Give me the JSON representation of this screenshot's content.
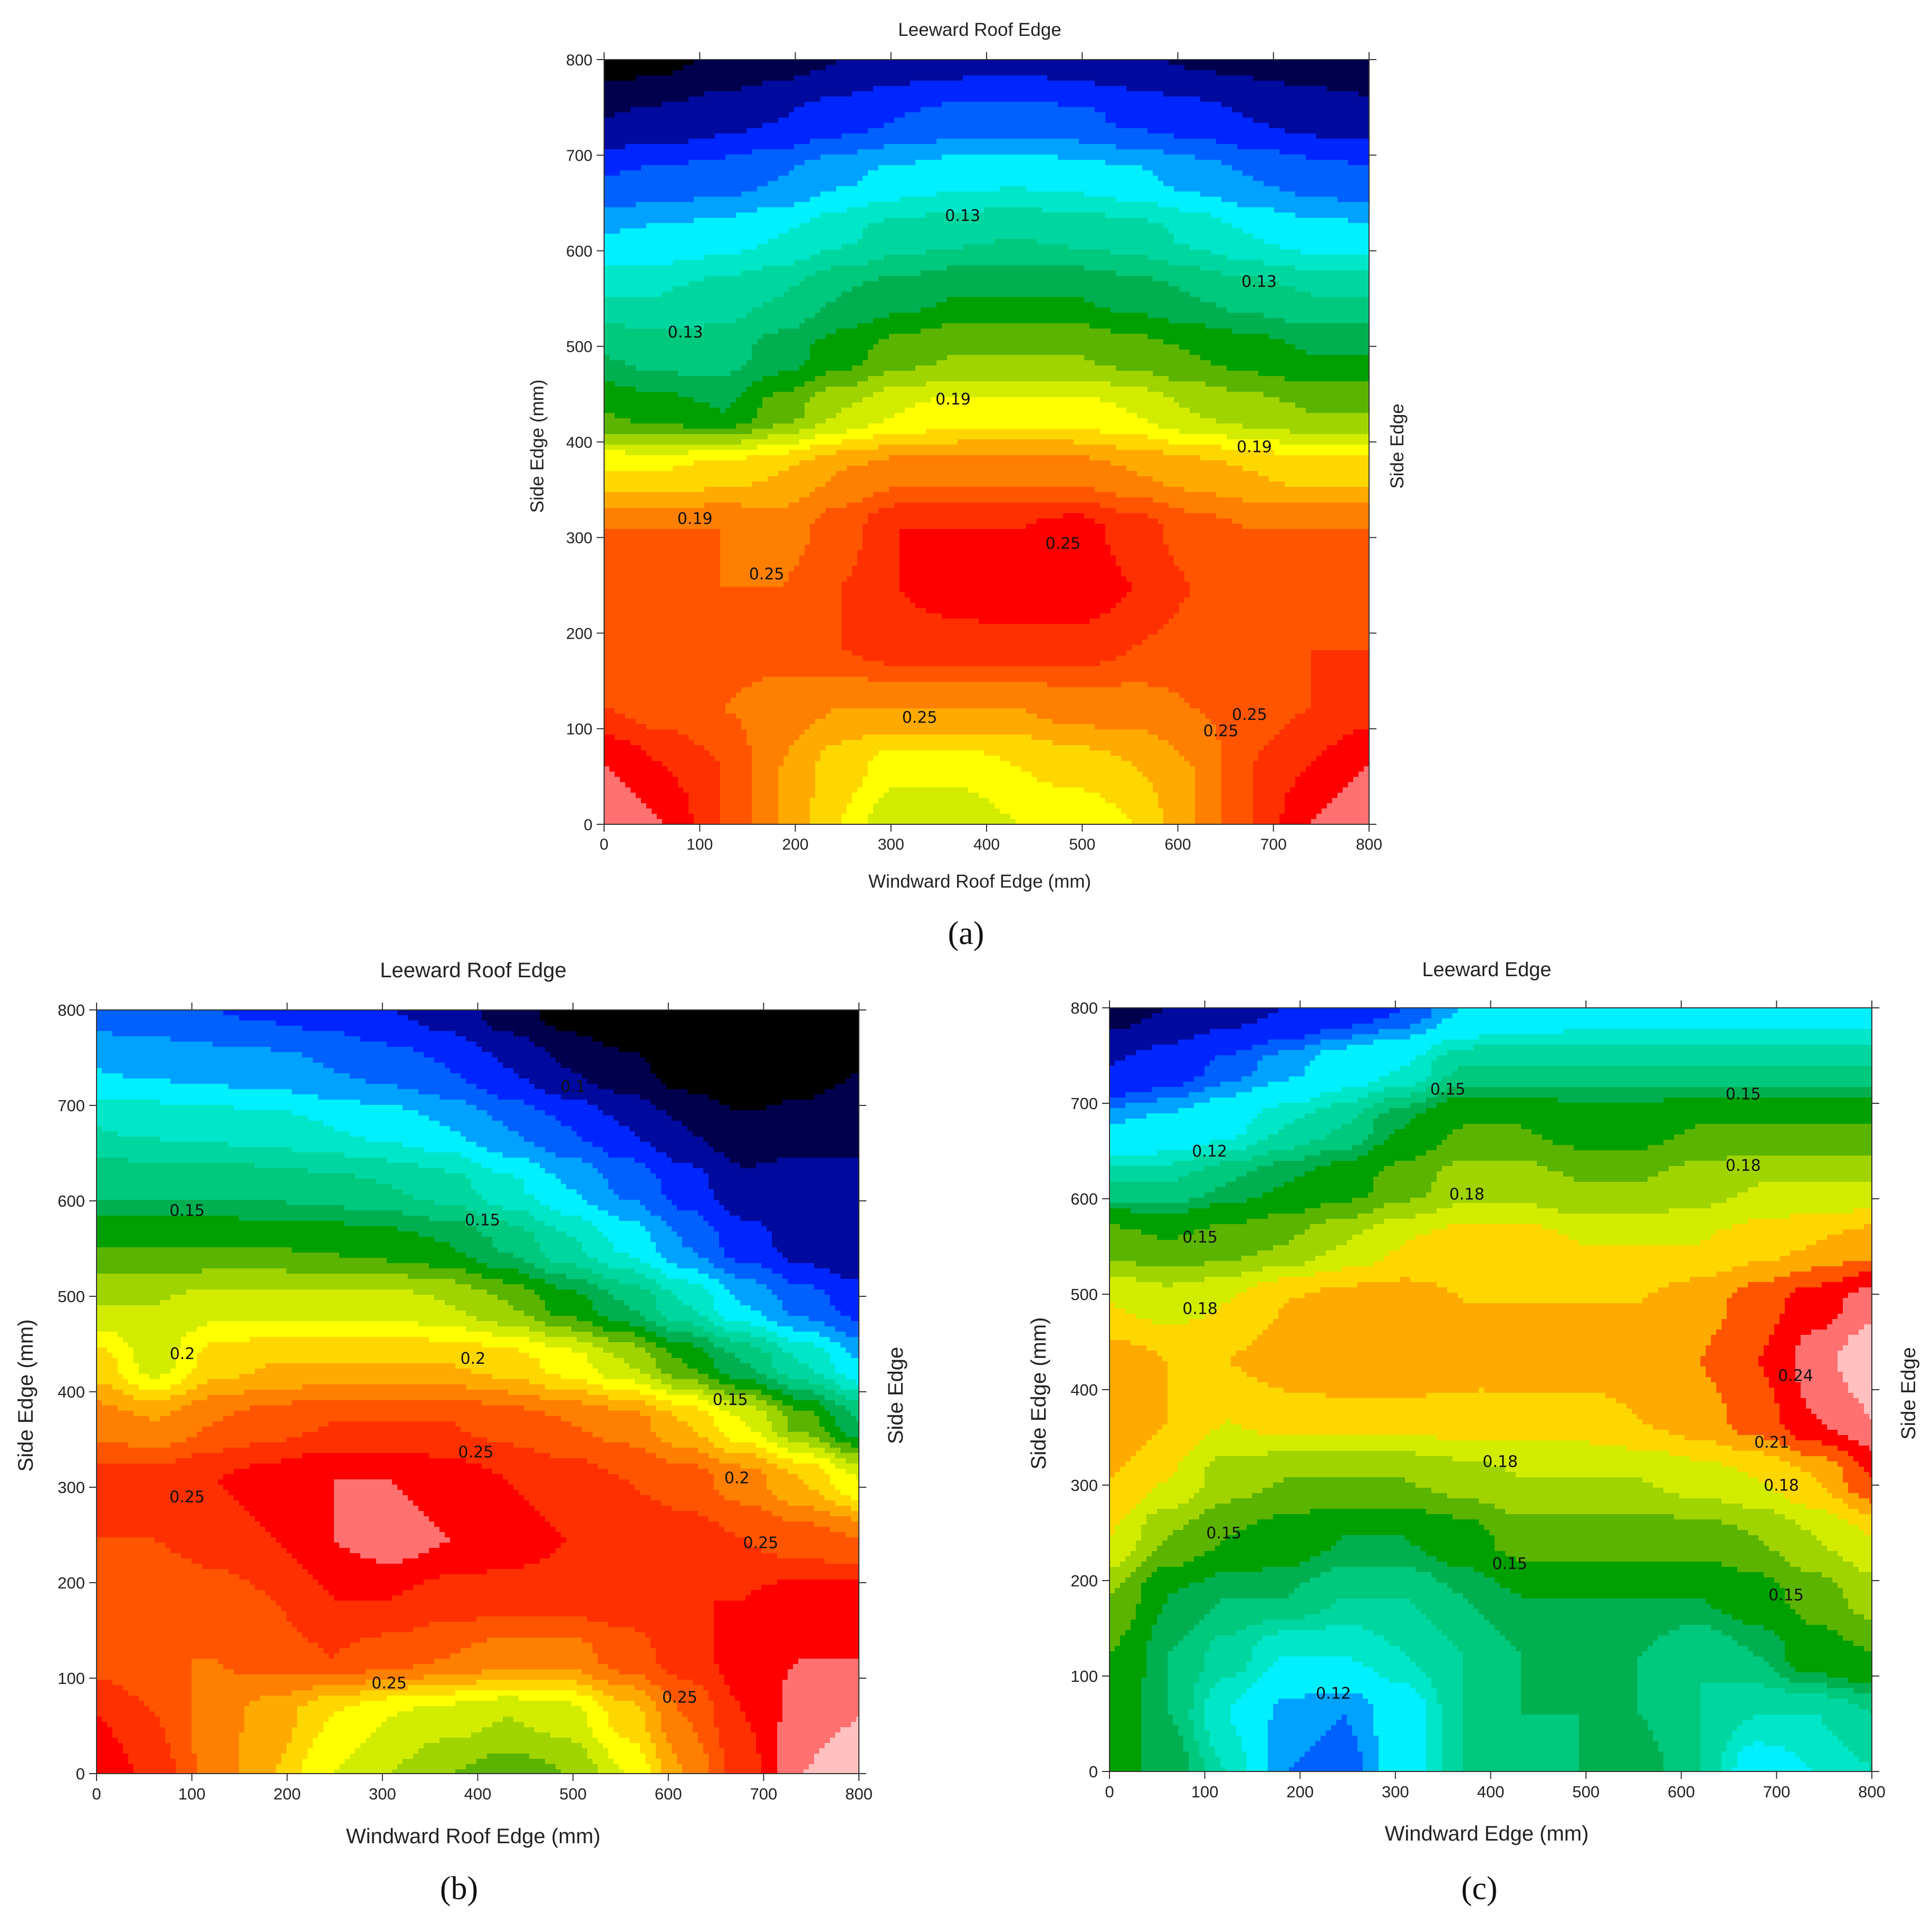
{
  "chart_data": [
    {
      "type": "heatmap",
      "panel_label": "(a)",
      "top_label": "Leeward Roof Edge",
      "right_label": "Side Edge",
      "xlabel": "Windward Roof Edge (mm)",
      "ylabel": "Side Edge (mm)",
      "xlim": [
        0,
        800
      ],
      "ylim": [
        0,
        800
      ],
      "xticks": [
        "0",
        "100",
        "200",
        "300",
        "400",
        "500",
        "600",
        "700",
        "800"
      ],
      "yticks": [
        "0",
        "100",
        "200",
        "300",
        "400",
        "500",
        "600",
        "700",
        "800"
      ],
      "levels": [
        0.08,
        0.09,
        0.1,
        0.11,
        0.12,
        0.13,
        0.14,
        0.15,
        0.16,
        0.17,
        0.18,
        0.19,
        0.2,
        0.21,
        0.22,
        0.23,
        0.24,
        0.25,
        0.26,
        0.27,
        0.28,
        0.29,
        0.3,
        0.31
      ],
      "colors": [
        "#000000",
        "#00004d",
        "#000a9e",
        "#0026ff",
        "#0061ff",
        "#00a2ff",
        "#00f0ff",
        "#00e6c8",
        "#00d7a0",
        "#00c87d",
        "#00b050",
        "#00a000",
        "#5ab400",
        "#9fd400",
        "#d2ec00",
        "#ffff00",
        "#ffd700",
        "#ffaa00",
        "#ff7f00",
        "#ff5500",
        "#ff3000",
        "#ff0000",
        "#ff7070",
        "#ffc0c0",
        "#ffffff"
      ],
      "grid": [
        [
          0.3,
          0.29,
          0.27,
          0.25,
          0.23,
          0.21,
          0.21,
          0.22,
          0.22,
          0.23,
          0.25,
          0.27,
          0.29,
          0.3
        ],
        [
          0.29,
          0.28,
          0.27,
          0.25,
          0.235,
          0.225,
          0.225,
          0.23,
          0.235,
          0.24,
          0.25,
          0.27,
          0.28,
          0.29
        ],
        [
          0.27,
          0.265,
          0.26,
          0.255,
          0.25,
          0.25,
          0.25,
          0.25,
          0.255,
          0.255,
          0.26,
          0.265,
          0.27,
          0.275
        ],
        [
          0.26,
          0.265,
          0.265,
          0.265,
          0.27,
          0.275,
          0.275,
          0.275,
          0.275,
          0.27,
          0.265,
          0.265,
          0.27,
          0.27
        ],
        [
          0.265,
          0.265,
          0.26,
          0.26,
          0.27,
          0.28,
          0.285,
          0.29,
          0.29,
          0.28,
          0.27,
          0.265,
          0.265,
          0.265
        ],
        [
          0.26,
          0.26,
          0.26,
          0.255,
          0.265,
          0.28,
          0.28,
          0.28,
          0.285,
          0.275,
          0.265,
          0.26,
          0.26,
          0.26
        ],
        [
          0.23,
          0.23,
          0.235,
          0.24,
          0.25,
          0.255,
          0.255,
          0.255,
          0.255,
          0.25,
          0.245,
          0.24,
          0.235,
          0.235
        ],
        [
          0.19,
          0.185,
          0.18,
          0.195,
          0.21,
          0.22,
          0.225,
          0.225,
          0.225,
          0.22,
          0.21,
          0.205,
          0.2,
          0.2
        ],
        [
          0.17,
          0.165,
          0.165,
          0.175,
          0.185,
          0.195,
          0.2,
          0.2,
          0.2,
          0.195,
          0.19,
          0.185,
          0.18,
          0.18
        ],
        [
          0.15,
          0.15,
          0.155,
          0.16,
          0.17,
          0.175,
          0.18,
          0.18,
          0.18,
          0.175,
          0.17,
          0.165,
          0.16,
          0.16
        ],
        [
          0.13,
          0.132,
          0.135,
          0.14,
          0.148,
          0.155,
          0.158,
          0.16,
          0.158,
          0.155,
          0.148,
          0.14,
          0.135,
          0.133
        ],
        [
          0.11,
          0.112,
          0.115,
          0.12,
          0.128,
          0.133,
          0.137,
          0.138,
          0.136,
          0.132,
          0.126,
          0.12,
          0.115,
          0.112
        ],
        [
          0.09,
          0.092,
          0.096,
          0.1,
          0.105,
          0.11,
          0.113,
          0.114,
          0.112,
          0.108,
          0.104,
          0.1,
          0.096,
          0.094
        ],
        [
          0.075,
          0.078,
          0.082,
          0.086,
          0.09,
          0.094,
          0.096,
          0.097,
          0.095,
          0.092,
          0.089,
          0.087,
          0.085,
          0.083
        ]
      ],
      "annotations": [
        {
          "text": "0.13",
          "x": 375,
          "y": 637
        },
        {
          "text": "0.13",
          "x": 85,
          "y": 515
        },
        {
          "text": "0.13",
          "x": 685,
          "y": 568
        },
        {
          "text": "0.19",
          "x": 365,
          "y": 445
        },
        {
          "text": "0.19",
          "x": 680,
          "y": 395
        },
        {
          "text": "0.19",
          "x": 95,
          "y": 320
        },
        {
          "text": "0.25",
          "x": 170,
          "y": 262
        },
        {
          "text": "0.25",
          "x": 480,
          "y": 294
        },
        {
          "text": "0.25",
          "x": 330,
          "y": 112
        },
        {
          "text": "0.25",
          "x": 675,
          "y": 115
        },
        {
          "text": "0.25",
          "x": 645,
          "y": 98
        }
      ]
    },
    {
      "type": "heatmap",
      "panel_label": "(b)",
      "top_label": "Leeward Roof Edge",
      "right_label": "Side Edge",
      "xlabel": "Windward Roof Edge (mm)",
      "ylabel": "Side Edge (mm)",
      "xlim": [
        0,
        800
      ],
      "ylim": [
        0,
        800
      ],
      "xticks": [
        "0",
        "100",
        "200",
        "300",
        "400",
        "500",
        "600",
        "700",
        "800"
      ],
      "yticks": [
        "0",
        "100",
        "200",
        "300",
        "400",
        "500",
        "600",
        "700",
        "800"
      ],
      "levels": [
        0.06,
        0.07,
        0.08,
        0.09,
        0.1,
        0.11,
        0.12,
        0.13,
        0.14,
        0.15,
        0.16,
        0.17,
        0.18,
        0.19,
        0.2,
        0.21,
        0.22,
        0.23,
        0.24,
        0.25,
        0.26,
        0.27,
        0.28,
        0.29
      ],
      "colors": [
        "#000000",
        "#00004d",
        "#000a9e",
        "#0026ff",
        "#0061ff",
        "#00a2ff",
        "#00f0ff",
        "#00e6c8",
        "#00d7a0",
        "#00c87d",
        "#00b050",
        "#00a000",
        "#5ab400",
        "#9fd400",
        "#d2ec00",
        "#ffff00",
        "#ffd700",
        "#ffaa00",
        "#ff7f00",
        "#ff5500",
        "#ff3000",
        "#ff0000",
        "#ff7070",
        "#ffc0c0",
        "#ffffff"
      ],
      "grid": [
        [
          0.27,
          0.255,
          0.235,
          0.22,
          0.2,
          0.19,
          0.18,
          0.175,
          0.18,
          0.2,
          0.23,
          0.255,
          0.28,
          0.29
        ],
        [
          0.26,
          0.25,
          0.235,
          0.225,
          0.21,
          0.2,
          0.195,
          0.19,
          0.195,
          0.215,
          0.24,
          0.26,
          0.275,
          0.28
        ],
        [
          0.245,
          0.24,
          0.24,
          0.245,
          0.25,
          0.245,
          0.24,
          0.235,
          0.235,
          0.245,
          0.255,
          0.265,
          0.27,
          0.27
        ],
        [
          0.24,
          0.24,
          0.245,
          0.25,
          0.26,
          0.26,
          0.255,
          0.255,
          0.255,
          0.255,
          0.26,
          0.26,
          0.265,
          0.265
        ],
        [
          0.25,
          0.25,
          0.255,
          0.26,
          0.27,
          0.275,
          0.27,
          0.265,
          0.26,
          0.258,
          0.255,
          0.25,
          0.245,
          0.24
        ],
        [
          0.255,
          0.255,
          0.26,
          0.265,
          0.27,
          0.27,
          0.265,
          0.26,
          0.255,
          0.25,
          0.245,
          0.235,
          0.22,
          0.2
        ],
        [
          0.235,
          0.23,
          0.24,
          0.245,
          0.25,
          0.25,
          0.25,
          0.245,
          0.24,
          0.235,
          0.22,
          0.2,
          0.175,
          0.15
        ],
        [
          0.215,
          0.195,
          0.215,
          0.22,
          0.22,
          0.22,
          0.22,
          0.215,
          0.205,
          0.19,
          0.17,
          0.15,
          0.13,
          0.11
        ],
        [
          0.19,
          0.19,
          0.195,
          0.195,
          0.195,
          0.195,
          0.19,
          0.18,
          0.165,
          0.15,
          0.13,
          0.11,
          0.095,
          0.085
        ],
        [
          0.17,
          0.17,
          0.17,
          0.17,
          0.168,
          0.165,
          0.16,
          0.148,
          0.132,
          0.118,
          0.1,
          0.085,
          0.075,
          0.07
        ],
        [
          0.148,
          0.148,
          0.148,
          0.146,
          0.143,
          0.14,
          0.134,
          0.122,
          0.11,
          0.098,
          0.085,
          0.073,
          0.075,
          0.07
        ],
        [
          0.13,
          0.128,
          0.126,
          0.124,
          0.12,
          0.116,
          0.11,
          0.1,
          0.09,
          0.08,
          0.07,
          0.062,
          0.065,
          0.07
        ],
        [
          0.11,
          0.108,
          0.106,
          0.104,
          0.1,
          0.096,
          0.09,
          0.08,
          0.07,
          0.063,
          0.055,
          0.05,
          0.055,
          0.06
        ],
        [
          0.095,
          0.093,
          0.09,
          0.088,
          0.085,
          0.08,
          0.075,
          0.065,
          0.055,
          0.05,
          0.045,
          0.045,
          0.05,
          0.055
        ]
      ],
      "annotations": [
        {
          "text": "0.1",
          "x": 500,
          "y": 720
        },
        {
          "text": "0.15",
          "x": 95,
          "y": 590
        },
        {
          "text": "0.15",
          "x": 405,
          "y": 580
        },
        {
          "text": "0.15",
          "x": 665,
          "y": 392
        },
        {
          "text": "0.2",
          "x": 90,
          "y": 440
        },
        {
          "text": "0.2",
          "x": 395,
          "y": 435
        },
        {
          "text": "0.2",
          "x": 672,
          "y": 310
        },
        {
          "text": "0.25",
          "x": 95,
          "y": 290
        },
        {
          "text": "0.25",
          "x": 398,
          "y": 337
        },
        {
          "text": "0.25",
          "x": 697,
          "y": 242
        },
        {
          "text": "0.25",
          "x": 307,
          "y": 95
        },
        {
          "text": "0.25",
          "x": 612,
          "y": 80
        }
      ]
    },
    {
      "type": "heatmap",
      "panel_label": "(c)",
      "top_label": "Leeward Edge",
      "right_label": "Side Edge",
      "xlabel": "Windward Edge (mm)",
      "ylabel": "Side Edge (mm)",
      "xlim": [
        0,
        800
      ],
      "ylim": [
        0,
        800
      ],
      "xticks": [
        "0",
        "100",
        "200",
        "300",
        "400",
        "500",
        "600",
        "700",
        "800"
      ],
      "yticks": [
        "0",
        "100",
        "200",
        "300",
        "400",
        "500",
        "600",
        "700",
        "800"
      ],
      "levels": [
        0.09,
        0.1,
        0.11,
        0.115,
        0.12,
        0.13,
        0.135,
        0.14,
        0.145,
        0.15,
        0.16,
        0.17,
        0.18,
        0.19,
        0.2,
        0.21,
        0.22,
        0.23,
        0.24,
        0.25
      ],
      "colors": [
        "#00004d",
        "#000a9e",
        "#0026ff",
        "#0061ff",
        "#00a2ff",
        "#00f0ff",
        "#00e6c8",
        "#00d7a0",
        "#00c87d",
        "#00b050",
        "#00a000",
        "#5ab400",
        "#9fd400",
        "#d2ec00",
        "#ffd700",
        "#ffaa00",
        "#ff5500",
        "#ff0000",
        "#ff7070",
        "#ffc0c0",
        "#ffffff"
      ],
      "grid": [
        [
          0.15,
          0.15,
          0.135,
          0.115,
          0.112,
          0.125,
          0.14,
          0.143,
          0.145,
          0.148,
          0.14,
          0.125,
          0.13,
          0.135
        ],
        [
          0.155,
          0.145,
          0.13,
          0.118,
          0.115,
          0.125,
          0.14,
          0.145,
          0.145,
          0.145,
          0.14,
          0.135,
          0.135,
          0.14
        ],
        [
          0.16,
          0.145,
          0.138,
          0.13,
          0.13,
          0.135,
          0.14,
          0.145,
          0.145,
          0.145,
          0.14,
          0.145,
          0.155,
          0.16
        ],
        [
          0.17,
          0.15,
          0.145,
          0.145,
          0.14,
          0.14,
          0.145,
          0.15,
          0.15,
          0.15,
          0.15,
          0.155,
          0.165,
          0.175
        ],
        [
          0.19,
          0.17,
          0.16,
          0.155,
          0.15,
          0.15,
          0.155,
          0.165,
          0.165,
          0.165,
          0.165,
          0.17,
          0.18,
          0.19
        ],
        [
          0.2,
          0.19,
          0.175,
          0.17,
          0.17,
          0.17,
          0.175,
          0.18,
          0.18,
          0.18,
          0.185,
          0.19,
          0.2,
          0.22
        ],
        [
          0.21,
          0.2,
          0.19,
          0.195,
          0.195,
          0.195,
          0.195,
          0.195,
          0.195,
          0.2,
          0.205,
          0.215,
          0.23,
          0.24
        ],
        [
          0.205,
          0.2,
          0.2,
          0.205,
          0.21,
          0.21,
          0.205,
          0.205,
          0.205,
          0.205,
          0.21,
          0.22,
          0.235,
          0.25
        ],
        [
          0.19,
          0.185,
          0.19,
          0.2,
          0.205,
          0.205,
          0.2,
          0.2,
          0.2,
          0.2,
          0.205,
          0.215,
          0.225,
          0.235
        ],
        [
          0.165,
          0.16,
          0.165,
          0.17,
          0.18,
          0.19,
          0.195,
          0.195,
          0.19,
          0.19,
          0.19,
          0.195,
          0.2,
          0.205
        ],
        [
          0.14,
          0.14,
          0.145,
          0.15,
          0.155,
          0.165,
          0.175,
          0.175,
          0.17,
          0.17,
          0.175,
          0.18,
          0.18,
          0.18
        ],
        [
          0.12,
          0.122,
          0.128,
          0.135,
          0.14,
          0.15,
          0.16,
          0.16,
          0.155,
          0.155,
          0.16,
          0.16,
          0.16,
          0.16
        ],
        [
          0.1,
          0.105,
          0.112,
          0.118,
          0.125,
          0.13,
          0.14,
          0.14,
          0.14,
          0.14,
          0.14,
          0.14,
          0.14,
          0.14
        ],
        [
          0.085,
          0.09,
          0.095,
          0.1,
          0.105,
          0.11,
          0.12,
          0.122,
          0.125,
          0.125,
          0.125,
          0.125,
          0.125,
          0.125
        ]
      ],
      "annotations": [
        {
          "text": "0.15",
          "x": 355,
          "y": 715
        },
        {
          "text": "0.15",
          "x": 665,
          "y": 710
        },
        {
          "text": "0.12",
          "x": 105,
          "y": 650
        },
        {
          "text": "0.18",
          "x": 665,
          "y": 635
        },
        {
          "text": "0.18",
          "x": 375,
          "y": 605
        },
        {
          "text": "0.15",
          "x": 95,
          "y": 560
        },
        {
          "text": "0.18",
          "x": 95,
          "y": 485
        },
        {
          "text": "0.24",
          "x": 720,
          "y": 415
        },
        {
          "text": "0.21",
          "x": 695,
          "y": 345
        },
        {
          "text": "0.18",
          "x": 410,
          "y": 325
        },
        {
          "text": "0.18",
          "x": 705,
          "y": 300
        },
        {
          "text": "0.15",
          "x": 120,
          "y": 250
        },
        {
          "text": "0.15",
          "x": 420,
          "y": 218
        },
        {
          "text": "0.15",
          "x": 710,
          "y": 185
        },
        {
          "text": "0.12",
          "x": 235,
          "y": 82
        }
      ]
    }
  ]
}
